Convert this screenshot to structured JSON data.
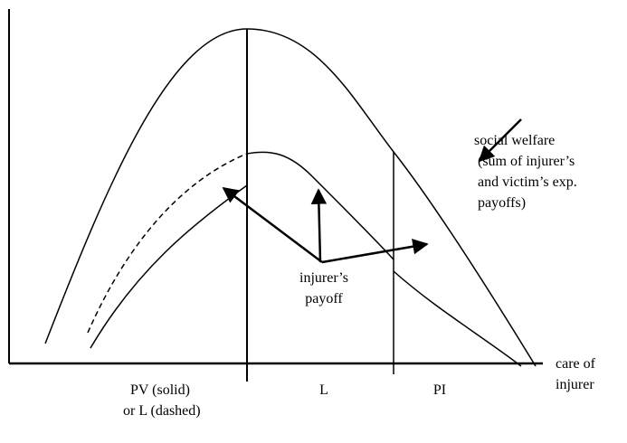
{
  "labels": {
    "welfare": [
      "social welfare",
      "(sum of injurer’s",
      "and victim’s exp.",
      "payoffs)"
    ],
    "payoff": [
      "injurer’s",
      "payoff"
    ],
    "x_axis": [
      "care of",
      "injurer"
    ],
    "regions": [
      "PV (solid)",
      "or L (dashed)",
      "L",
      "PI"
    ]
  }
}
